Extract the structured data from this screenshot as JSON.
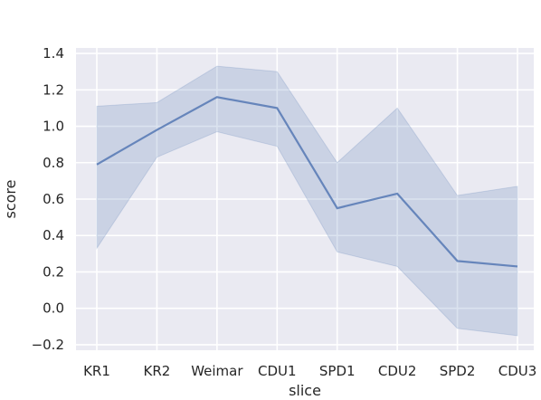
{
  "chart_data": {
    "type": "line",
    "title": "",
    "xlabel": "slice",
    "ylabel": "score",
    "categories": [
      "KR1",
      "KR2",
      "Weimar",
      "CDU1",
      "SPD1",
      "CDU2",
      "SPD2",
      "CDU3"
    ],
    "series": [
      {
        "values": [
          0.79,
          0.98,
          1.16,
          1.1,
          0.55,
          0.63,
          0.26,
          0.23
        ],
        "ci_lower": [
          0.33,
          0.83,
          0.97,
          0.89,
          0.31,
          0.23,
          -0.11,
          -0.15
        ],
        "ci_upper": [
          1.11,
          1.13,
          1.33,
          1.3,
          0.8,
          1.1,
          0.62,
          0.67
        ],
        "color": "#4c72b0"
      }
    ],
    "ylim": [
      -0.23,
      1.43
    ],
    "yticks": [
      -0.2,
      0.0,
      0.2,
      0.4,
      0.6,
      0.8,
      1.0,
      1.2,
      1.4
    ],
    "ytick_labels": [
      "−0.2",
      "0.0",
      "0.2",
      "0.4",
      "0.6",
      "0.8",
      "1.0",
      "1.2",
      "1.4"
    ],
    "grid": true,
    "background": "#eaeaf2",
    "grid_color": "#ffffff"
  }
}
